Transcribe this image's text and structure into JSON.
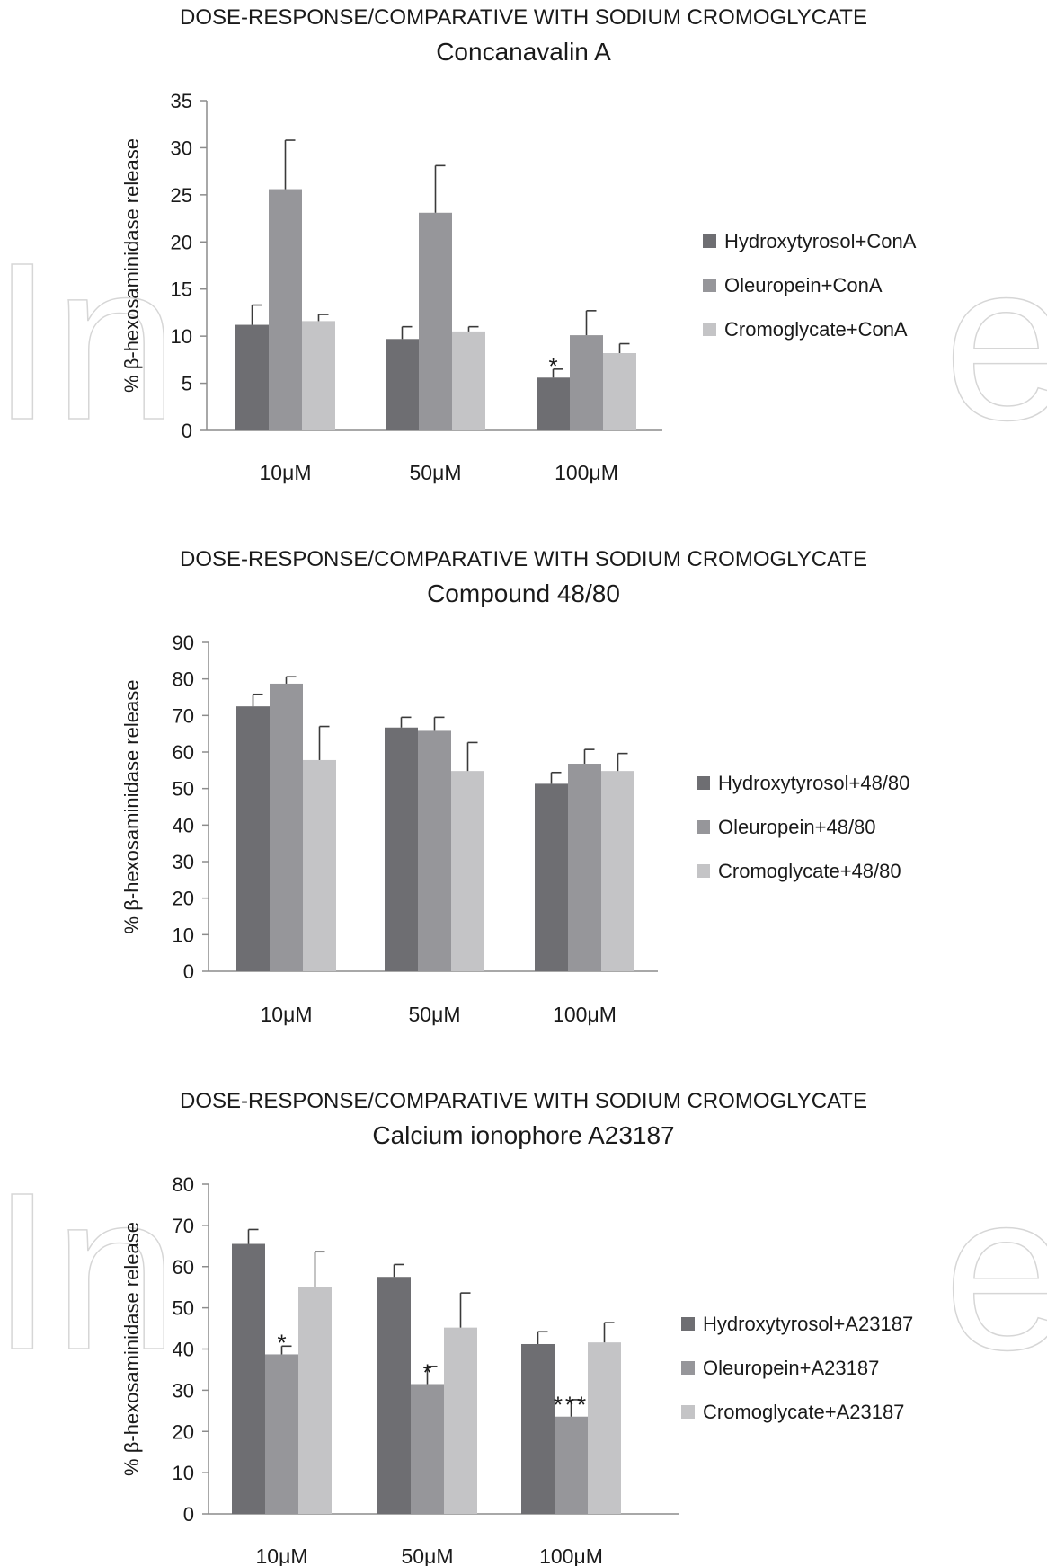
{
  "colors": {
    "series1": "#6e6e72",
    "series2": "#96969a",
    "series3": "#c4c4c6",
    "axis": "#8c8c8c",
    "error_bar": "#3a3a3a"
  },
  "chart_data": [
    {
      "type": "bar",
      "title": "DOSE-RESPONSE/COMPARATIVE WITH SODIUM CROMOGLYCATE",
      "subtitle": "Concanavalin A",
      "ylabel": "% β-hexosaminidase release",
      "xlabel": "",
      "ylim": [
        0,
        35
      ],
      "yticks": [
        0,
        5,
        10,
        15,
        20,
        25,
        30,
        35
      ],
      "grid": false,
      "legend_position": "right",
      "categories": [
        "10μM",
        "50μM",
        "100μM"
      ],
      "series": [
        {
          "name": "Hydroxytyrosol+ConA",
          "values": [
            11.2,
            9.7,
            5.6
          ],
          "errors": [
            2.1,
            1.3,
            0.9
          ],
          "annotations": [
            "",
            "",
            "*"
          ]
        },
        {
          "name": "Oleuropein+ConA",
          "values": [
            25.6,
            23.1,
            10.1
          ],
          "errors": [
            5.2,
            5.0,
            2.6
          ],
          "annotations": [
            "",
            "",
            ""
          ]
        },
        {
          "name": "Cromoglycate+ConA",
          "values": [
            11.6,
            10.5,
            8.2
          ],
          "errors": [
            0.7,
            0.5,
            1.0
          ],
          "annotations": [
            "",
            "",
            ""
          ]
        }
      ]
    },
    {
      "type": "bar",
      "title": "DOSE-RESPONSE/COMPARATIVE WITH SODIUM CROMOGLYCATE",
      "subtitle": "Compound 48/80",
      "ylabel": "% β-hexosaminidase release",
      "xlabel": "",
      "ylim": [
        0,
        90
      ],
      "yticks": [
        0,
        10,
        20,
        30,
        40,
        50,
        60,
        70,
        80,
        90
      ],
      "grid": false,
      "legend_position": "right",
      "categories": [
        "10μM",
        "50μM",
        "100μM"
      ],
      "series": [
        {
          "name": "Hydroxytyrosol+48/80",
          "values": [
            72.5,
            66.7,
            51.3
          ],
          "errors": [
            3.3,
            2.8,
            3.1
          ],
          "annotations": [
            "",
            "",
            ""
          ]
        },
        {
          "name": "Oleuropein+48/80",
          "values": [
            78.7,
            65.8,
            56.8
          ],
          "errors": [
            1.9,
            3.7,
            3.9
          ],
          "annotations": [
            "",
            "",
            ""
          ]
        },
        {
          "name": "Cromoglycate+48/80",
          "values": [
            57.8,
            54.8,
            54.8
          ],
          "errors": [
            9.2,
            7.8,
            4.8
          ],
          "annotations": [
            "",
            "",
            ""
          ]
        }
      ]
    },
    {
      "type": "bar",
      "title": "DOSE-RESPONSE/COMPARATIVE WITH SODIUM CROMOGLYCATE",
      "subtitle": "Calcium ionophore A23187",
      "ylabel": "% β-hexosaminidase release",
      "xlabel": "",
      "ylim": [
        0,
        80
      ],
      "yticks": [
        0,
        10,
        20,
        30,
        40,
        50,
        60,
        70,
        80
      ],
      "grid": false,
      "legend_position": "right",
      "categories": [
        "10μM",
        "50μM",
        "100μM"
      ],
      "series": [
        {
          "name": "Hydroxytyrosol+A23187",
          "values": [
            65.5,
            57.5,
            41.2
          ],
          "errors": [
            3.5,
            3.0,
            3.0
          ],
          "annotations": [
            "",
            "",
            ""
          ]
        },
        {
          "name": "Oleuropein+A23187",
          "values": [
            38.7,
            31.5,
            23.6
          ],
          "errors": [
            2.0,
            4.3,
            4.1
          ],
          "annotations": [
            "*",
            "*",
            "***"
          ]
        },
        {
          "name": "Cromoglycate+A23187",
          "values": [
            55.0,
            45.2,
            41.6
          ],
          "errors": [
            8.6,
            8.4,
            4.8
          ],
          "annotations": [
            "",
            "",
            ""
          ]
        }
      ]
    }
  ]
}
